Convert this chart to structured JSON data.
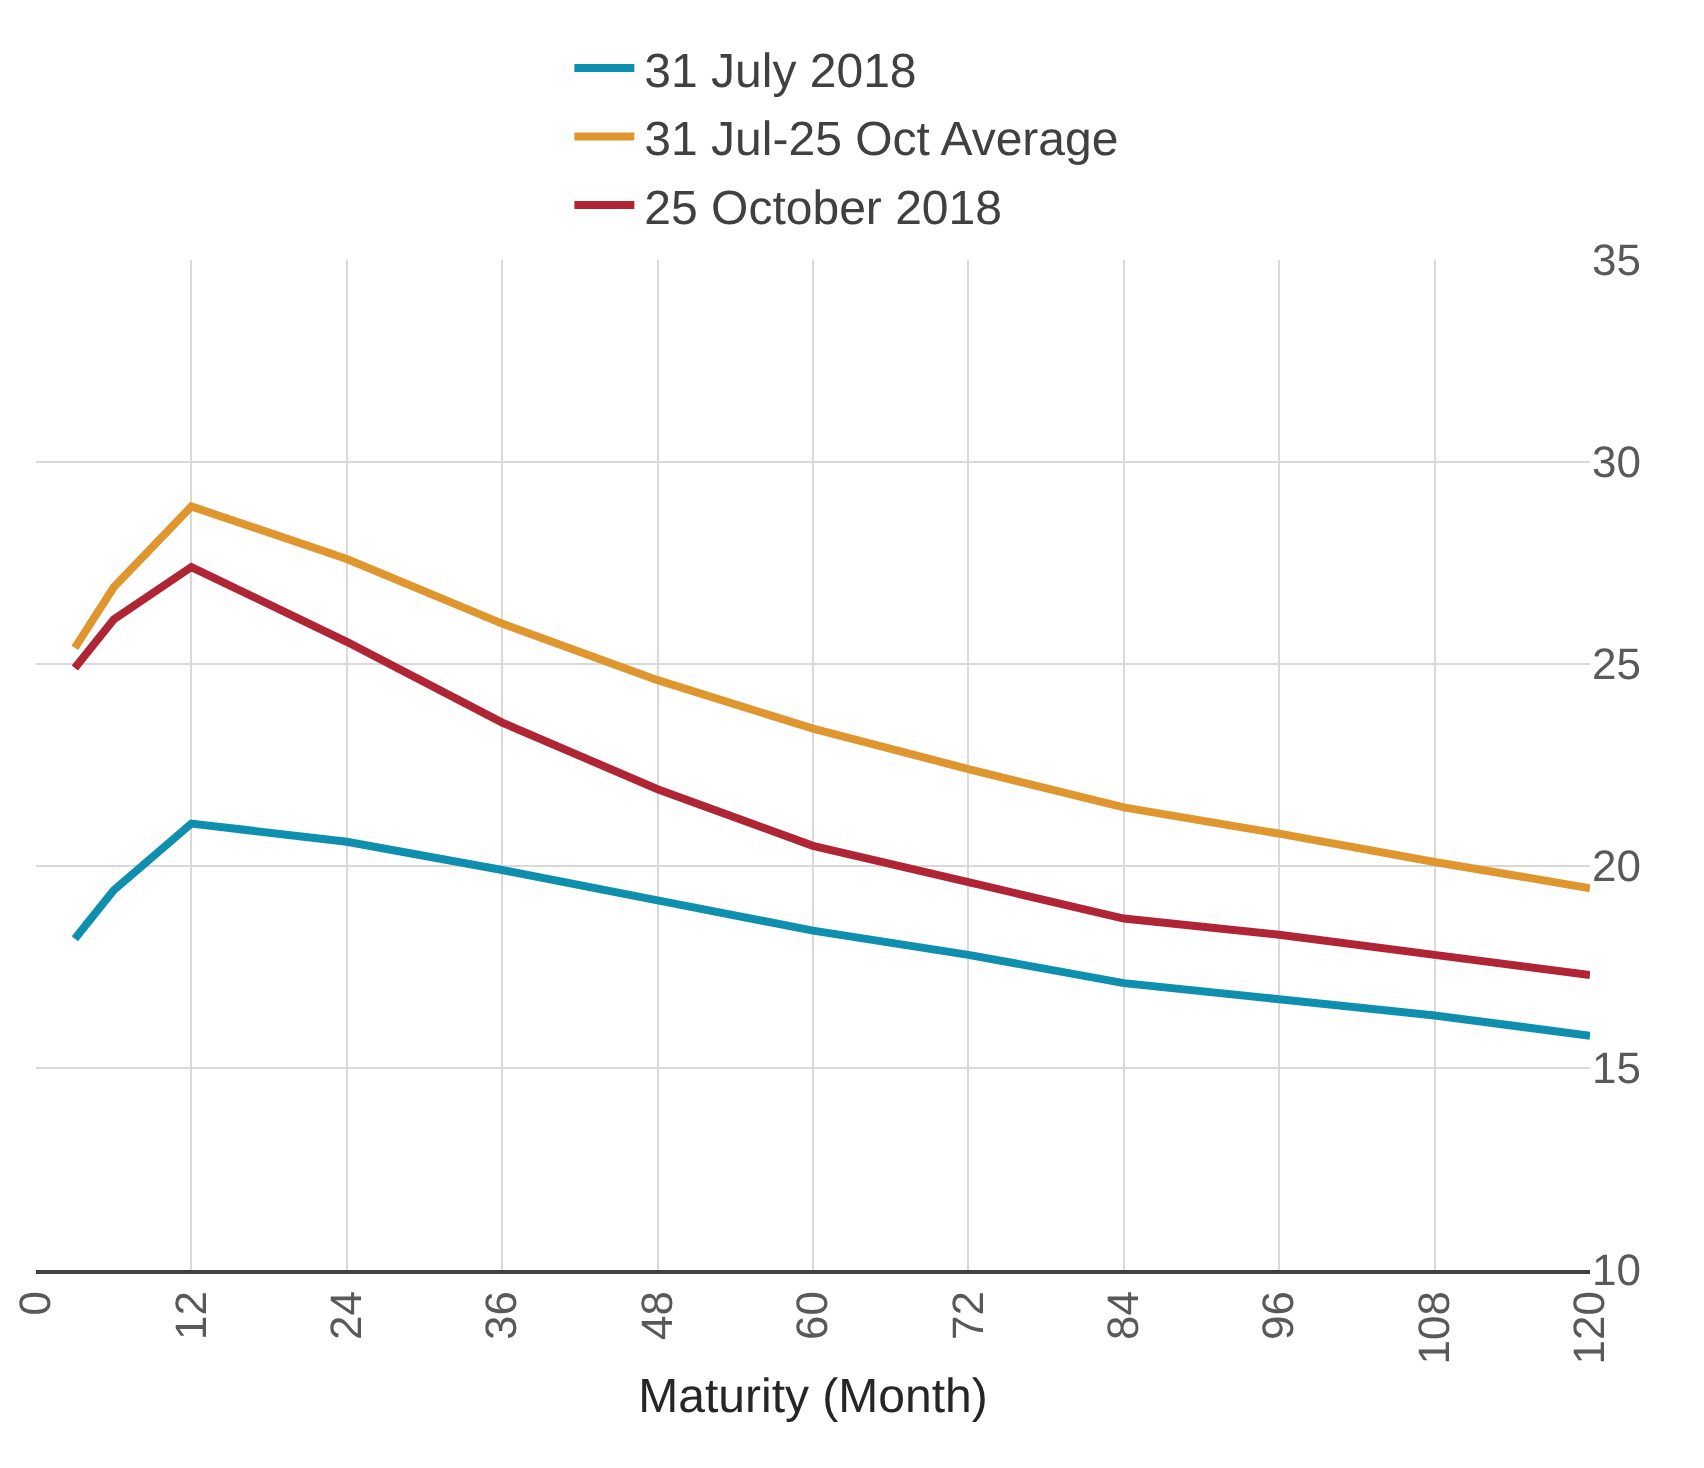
{
  "chart_data": {
    "type": "line",
    "xlabel": "Maturity (Month)",
    "x": [
      3,
      6,
      12,
      24,
      36,
      48,
      60,
      72,
      84,
      96,
      108,
      120
    ],
    "series": [
      {
        "name": "31 July 2018",
        "color": "#0f8fae",
        "values": [
          18.2,
          19.4,
          21.05,
          20.6,
          19.9,
          19.15,
          18.4,
          17.8,
          17.1,
          16.7,
          16.3,
          15.8
        ]
      },
      {
        "name": "31 Jul-25 Oct Average",
        "color": "#e0962f",
        "values": [
          25.4,
          26.9,
          28.9,
          27.6,
          26.0,
          24.6,
          23.4,
          22.4,
          21.45,
          20.8,
          20.1,
          19.45
        ]
      },
      {
        "name": "25 October 2018",
        "color": "#b02535",
        "values": [
          24.9,
          26.1,
          27.4,
          25.55,
          23.55,
          21.9,
          20.5,
          19.6,
          18.7,
          18.3,
          17.8,
          17.3
        ]
      }
    ],
    "xlim": [
      0,
      120
    ],
    "xticks": [
      0,
      12,
      24,
      36,
      48,
      60,
      72,
      84,
      96,
      108,
      120
    ],
    "ylim": [
      10,
      35
    ],
    "yticks": [
      10,
      15,
      20,
      25,
      30,
      35
    ],
    "grid": true,
    "legend": "top",
    "marker": "none",
    "line_style": "solid"
  }
}
